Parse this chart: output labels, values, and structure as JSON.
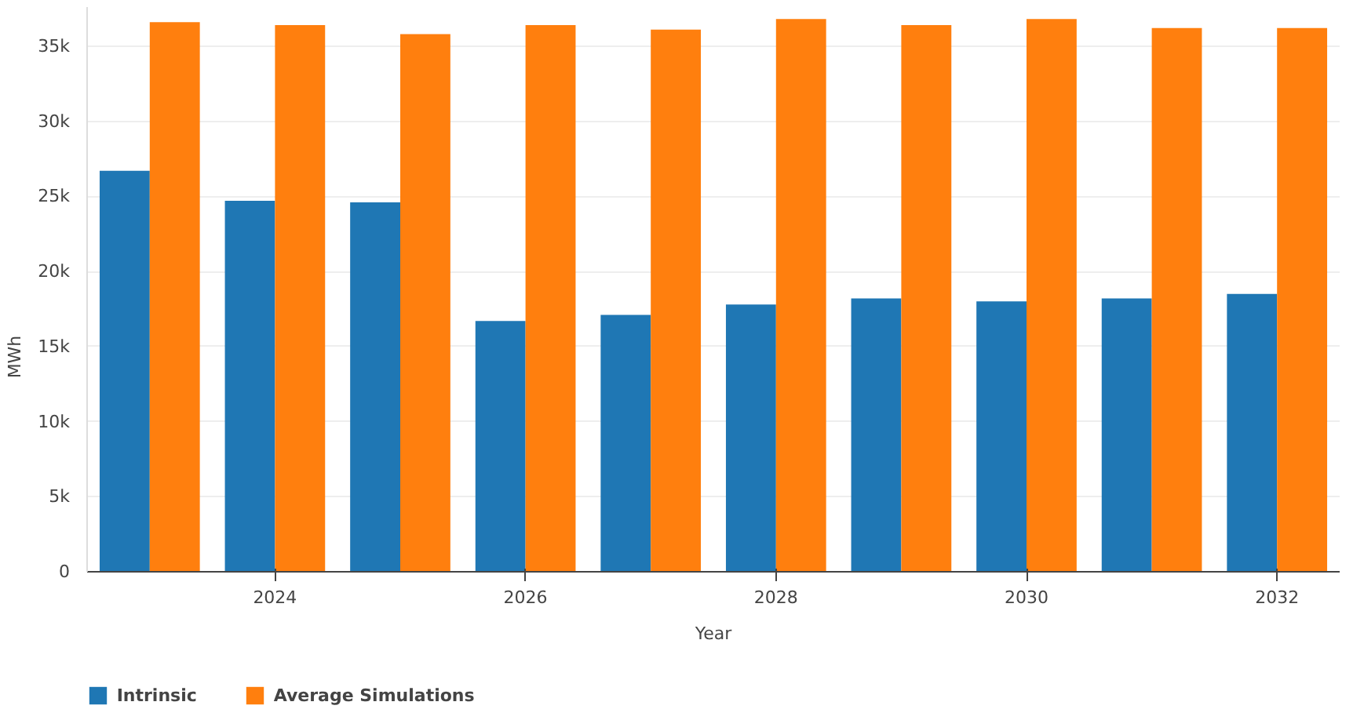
{
  "chart_data": {
    "type": "bar",
    "xlabel": "Year",
    "ylabel": "MWh",
    "x": [
      2023,
      2024,
      2025,
      2026,
      2027,
      2028,
      2029,
      2030,
      2031,
      2032
    ],
    "series": [
      {
        "name": "Intrinsic",
        "color": "#1f77b4",
        "values": [
          26.7,
          24.7,
          24.6,
          16.7,
          17.1,
          17.8,
          18.2,
          18.0,
          18.2,
          18.5
        ]
      },
      {
        "name": "Average Simulations",
        "color": "#ff7f0e",
        "values": [
          36.6,
          36.4,
          35.8,
          36.4,
          36.1,
          36.8,
          36.4,
          36.8,
          36.2,
          36.2
        ]
      }
    ],
    "xlim": [
      2022.5,
      2032.5
    ],
    "xticks": [
      2024,
      2026,
      2028,
      2030,
      2032
    ],
    "ylim": [
      0,
      37.6
    ],
    "yticks": [
      {
        "value": 0,
        "label": "0"
      },
      {
        "value": 5,
        "label": "5k"
      },
      {
        "value": 10,
        "label": "10k"
      },
      {
        "value": 15,
        "label": "15k"
      },
      {
        "value": 20,
        "label": "20k"
      },
      {
        "value": 25,
        "label": "25k"
      },
      {
        "value": 30,
        "label": "30k"
      },
      {
        "value": 35,
        "label": "35k"
      }
    ],
    "grid": "y",
    "legend": "bottom left"
  }
}
